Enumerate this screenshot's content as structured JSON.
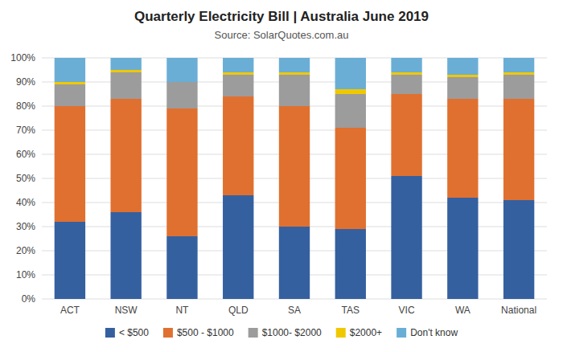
{
  "chart_data": {
    "type": "bar",
    "stacked": true,
    "title": "Quarterly Electricity Bill | Australia June 2019",
    "subtitle": "Source: SolarQuotes.com.au",
    "categories": [
      "ACT",
      "NSW",
      "NT",
      "QLD",
      "SA",
      "TAS",
      "VIC",
      "WA",
      "National"
    ],
    "series": [
      {
        "name": "< $500",
        "color": "#3560A0",
        "values": [
          32,
          36,
          26,
          43,
          30,
          29,
          51,
          42,
          41
        ]
      },
      {
        "name": "$500 - $1000",
        "color": "#E07030",
        "values": [
          48,
          47,
          53,
          41,
          50,
          42,
          34,
          41,
          42
        ]
      },
      {
        "name": "$1000- $2000",
        "color": "#9C9C9C",
        "values": [
          9,
          11,
          11,
          9,
          13,
          14,
          8,
          9,
          10
        ]
      },
      {
        "name": "$2000+",
        "color": "#F0C800",
        "values": [
          1,
          1,
          0,
          1,
          1,
          2,
          1,
          1,
          1
        ]
      },
      {
        "name": "Don't know",
        "color": "#6AAED6",
        "values": [
          10,
          5,
          10,
          6,
          6,
          13,
          6,
          7,
          6
        ]
      }
    ],
    "ylim": [
      0,
      100
    ],
    "yticks": [
      {
        "value": 0,
        "label": "0%"
      },
      {
        "value": 10,
        "label": "10%"
      },
      {
        "value": 20,
        "label": "20%"
      },
      {
        "value": 30,
        "label": "30%"
      },
      {
        "value": 40,
        "label": "40%"
      },
      {
        "value": 50,
        "label": "50%"
      },
      {
        "value": 60,
        "label": "60%"
      },
      {
        "value": 70,
        "label": "70%"
      },
      {
        "value": 80,
        "label": "80%"
      },
      {
        "value": 90,
        "label": "90%"
      },
      {
        "value": 100,
        "label": "100%"
      }
    ],
    "grid": true,
    "legend": "bottom"
  }
}
